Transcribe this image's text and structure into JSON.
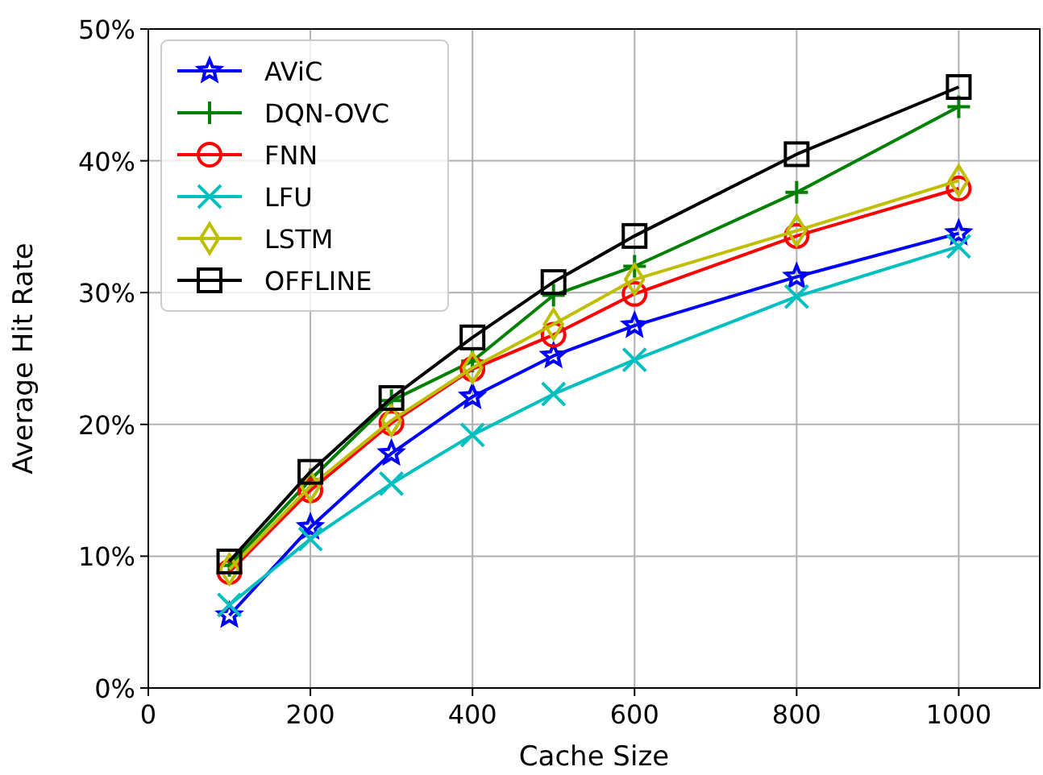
{
  "chart_data": {
    "type": "line",
    "xlabel": "Cache Size",
    "ylabel": "Average Hit Rate",
    "xlim": [
      0,
      1100
    ],
    "xticks": [
      0,
      200,
      400,
      600,
      800,
      1000
    ],
    "ylim": [
      0,
      50
    ],
    "yticks": [
      {
        "value": 0,
        "label": "0%"
      },
      {
        "value": 10,
        "label": "10%"
      },
      {
        "value": 20,
        "label": "20%"
      },
      {
        "value": 30,
        "label": "30%"
      },
      {
        "value": 40,
        "label": "40%"
      },
      {
        "value": 50,
        "label": "50%"
      }
    ],
    "grid": true,
    "legend": "top left",
    "line_style": "solid",
    "x": [
      100,
      200,
      300,
      400,
      500,
      600,
      800,
      1000
    ],
    "series": [
      {
        "name": "AViC",
        "color": "#0000ff",
        "marker": "star",
        "values": [
          5.5,
          12.2,
          17.8,
          22.1,
          25.2,
          27.5,
          31.2,
          34.5
        ]
      },
      {
        "name": "DQN-OVC",
        "color": "#008000",
        "marker": "plus",
        "values": [
          9.3,
          15.8,
          21.8,
          24.8,
          29.8,
          32.0,
          37.6,
          44.1
        ]
      },
      {
        "name": "FNN",
        "color": "#ff0000",
        "marker": "circle",
        "values": [
          8.8,
          15.0,
          20.1,
          24.2,
          26.8,
          29.9,
          34.3,
          37.9
        ]
      },
      {
        "name": "LFU",
        "color": "#00bfbf",
        "marker": "cross",
        "values": [
          6.3,
          11.3,
          15.5,
          19.2,
          22.3,
          24.9,
          29.7,
          33.5
        ]
      },
      {
        "name": "LSTM",
        "color": "#bfbf00",
        "marker": "diamond",
        "values": [
          9.0,
          15.3,
          20.3,
          24.3,
          27.6,
          31.0,
          34.7,
          38.5
        ]
      },
      {
        "name": "OFFLINE",
        "color": "#000000",
        "marker": "square",
        "values": [
          9.6,
          16.4,
          22.0,
          26.6,
          30.8,
          34.3,
          40.5,
          45.6
        ]
      }
    ]
  }
}
